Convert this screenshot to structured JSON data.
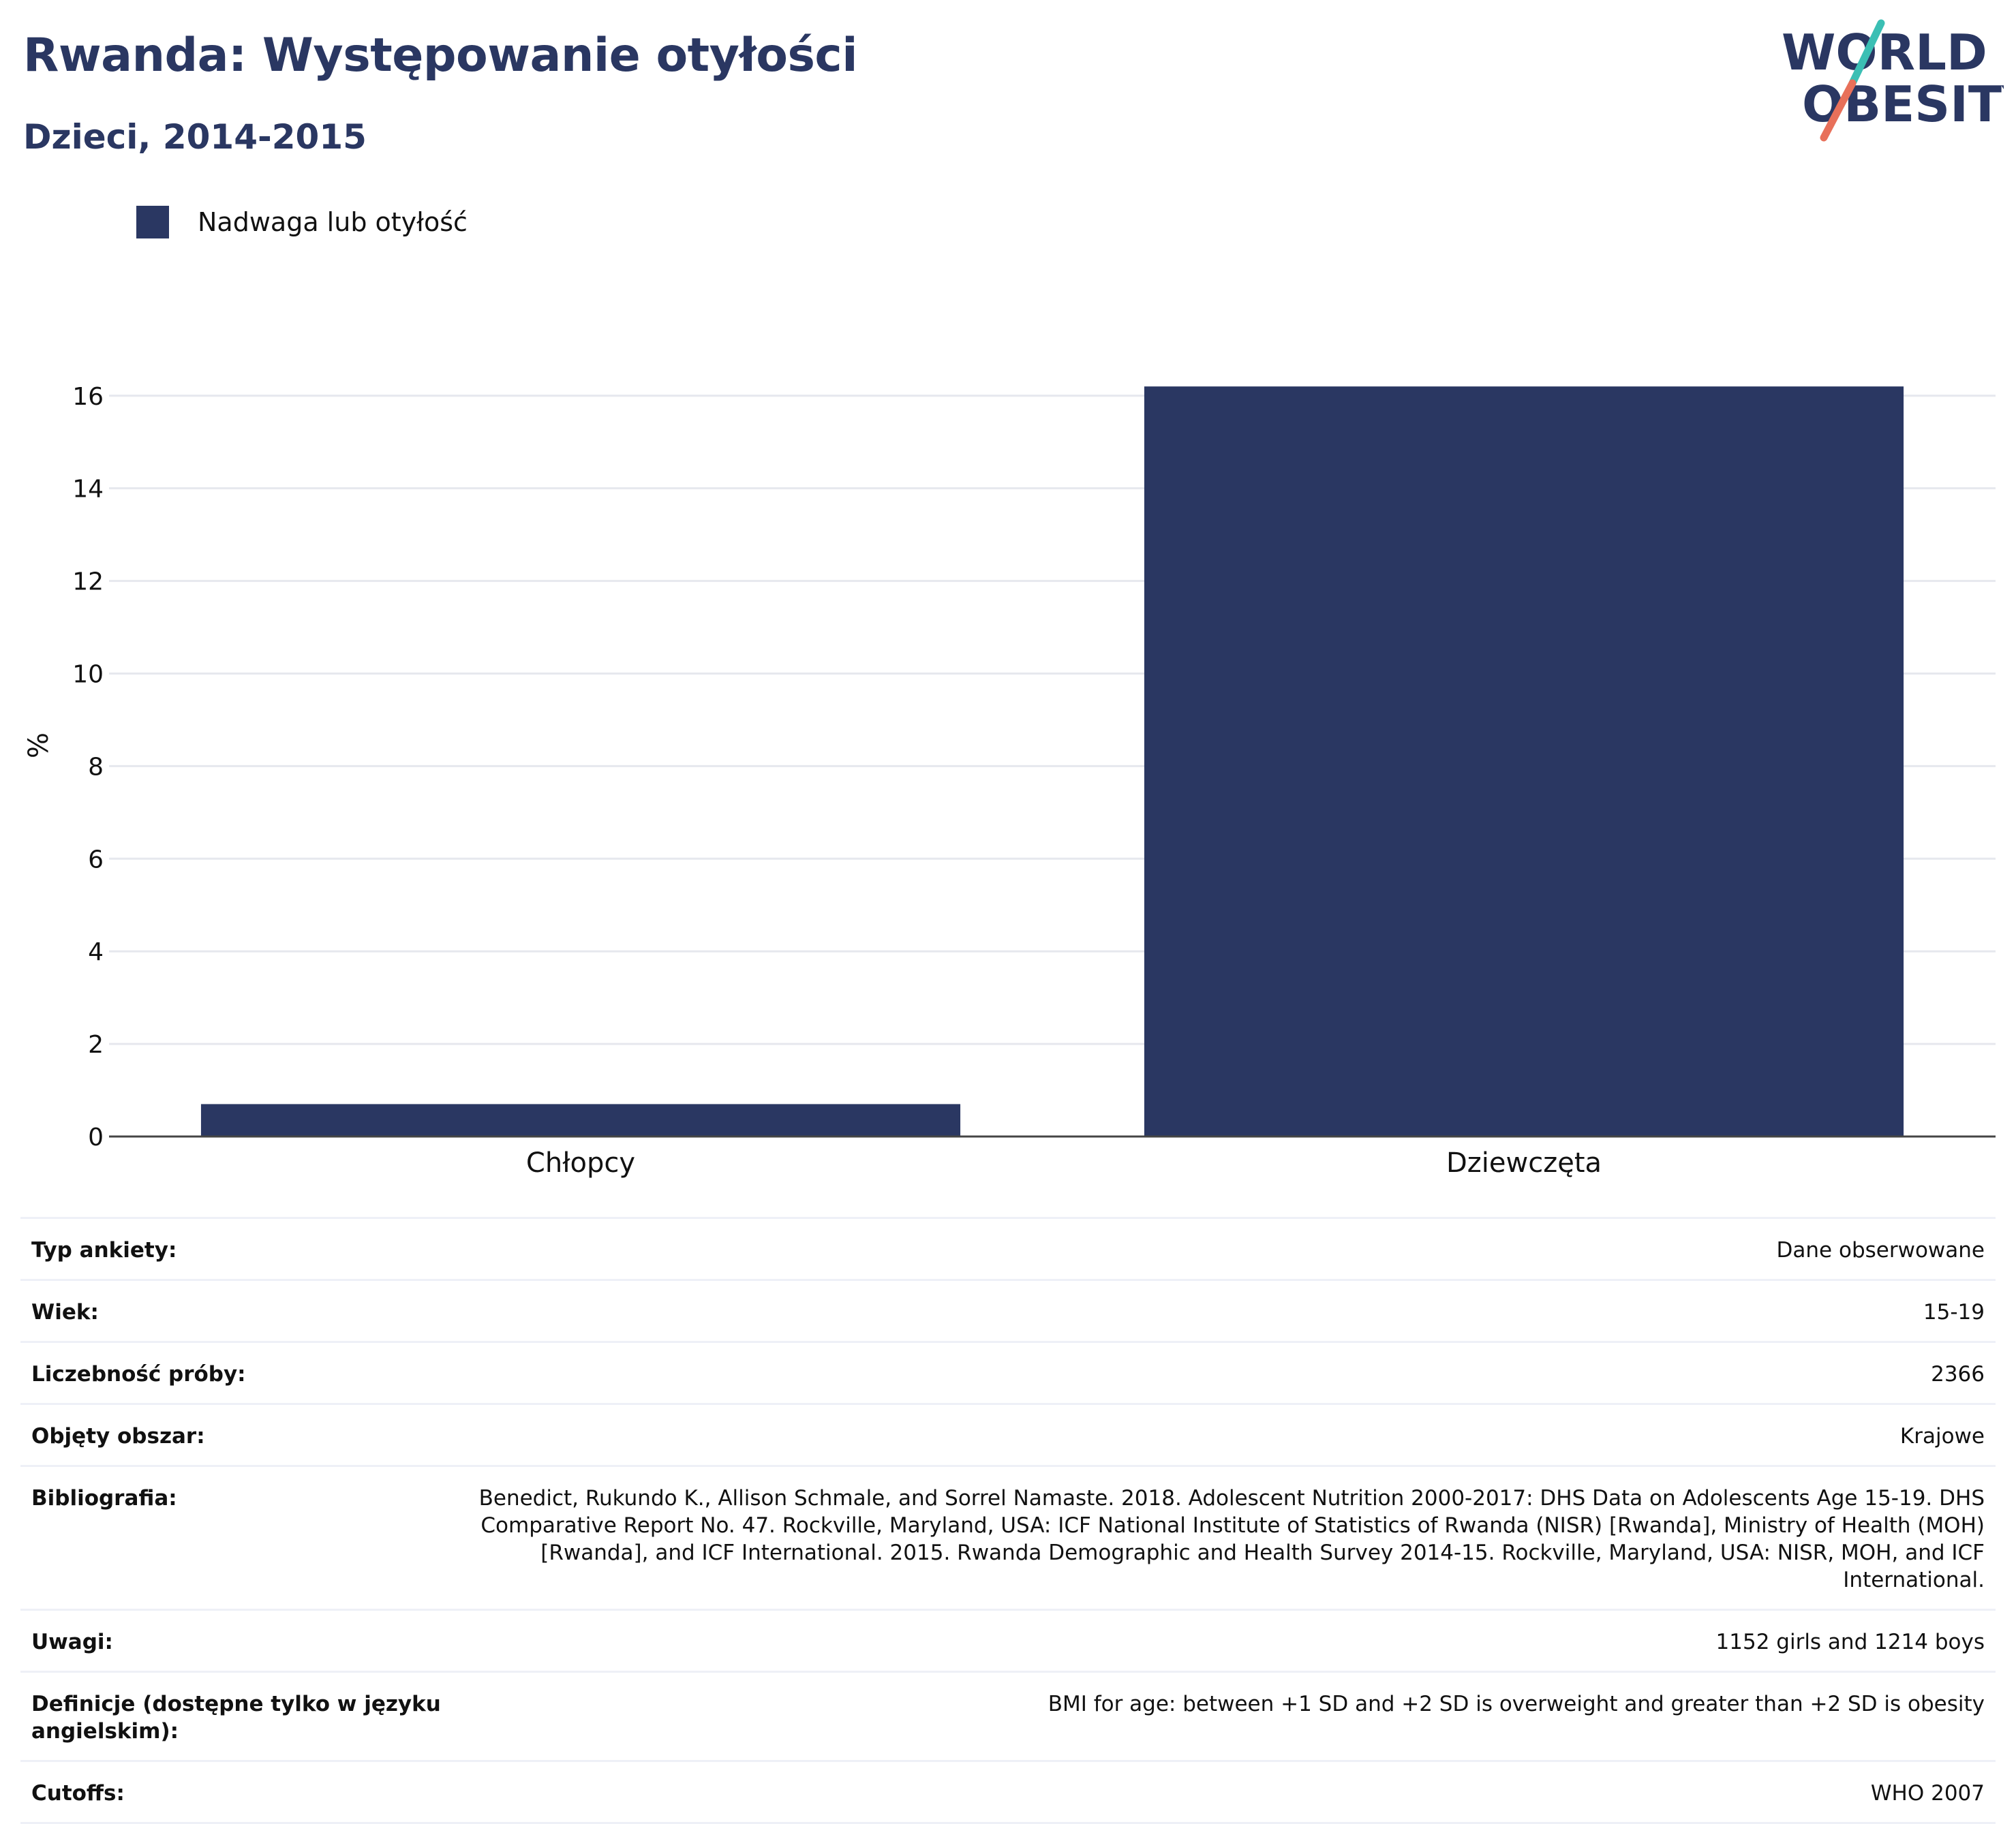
{
  "header": {
    "title": "Rwanda: Występowanie otyłości",
    "subtitle": "Dzieci, 2014-2015"
  },
  "logo": {
    "line1": "WORLD",
    "line2": "OBESITY",
    "colors": {
      "text": "#2a3762",
      "slash_top": "#3bbfb4",
      "slash_bottom": "#e8705a"
    }
  },
  "legend": {
    "label": "Nadwaga lub otyłość",
    "color": "#2a3762"
  },
  "chart_data": {
    "type": "bar",
    "categories": [
      "Chłopcy",
      "Dziewczęta"
    ],
    "series": [
      {
        "name": "Nadwaga lub otyłość",
        "values": [
          0.7,
          16.2
        ],
        "color": "#2a3762"
      }
    ],
    "ylabel": "%",
    "xlabel": "",
    "ylim": [
      0,
      16.6
    ],
    "yticks": [
      0,
      2,
      4,
      6,
      8,
      10,
      12,
      14,
      16
    ],
    "grid": true,
    "legend_position": "top-left"
  },
  "details": [
    {
      "key": "Typ ankiety:",
      "value": "Dane obserwowane"
    },
    {
      "key": "Wiek:",
      "value": "15-19"
    },
    {
      "key": "Liczebność próby:",
      "value": "2366"
    },
    {
      "key": "Objęty obszar:",
      "value": "Krajowe"
    },
    {
      "key": "Bibliografia:",
      "value": "Benedict, Rukundo K., Allison Schmale, and Sorrel Namaste. 2018. Adolescent Nutrition 2000-2017: DHS Data on Adolescents Age 15-19. DHS Comparative Report No. 47. Rockville, Maryland, USA: ICF National Institute of Statistics of Rwanda (NISR) [Rwanda], Ministry of Health (MOH) [Rwanda], and ICF International. 2015. Rwanda Demographic and Health Survey 2014-15. Rockville, Maryland, USA: NISR, MOH, and ICF International."
    },
    {
      "key": "Uwagi:",
      "value": "1152 girls and 1214 boys"
    },
    {
      "key": "Definicje (dostępne tylko w języku angielskim):",
      "value": "BMI for age: between +1 SD and +2 SD is overweight and greater than +2 SD is obesity"
    },
    {
      "key": "Cutoffs:",
      "value": "WHO 2007"
    }
  ]
}
